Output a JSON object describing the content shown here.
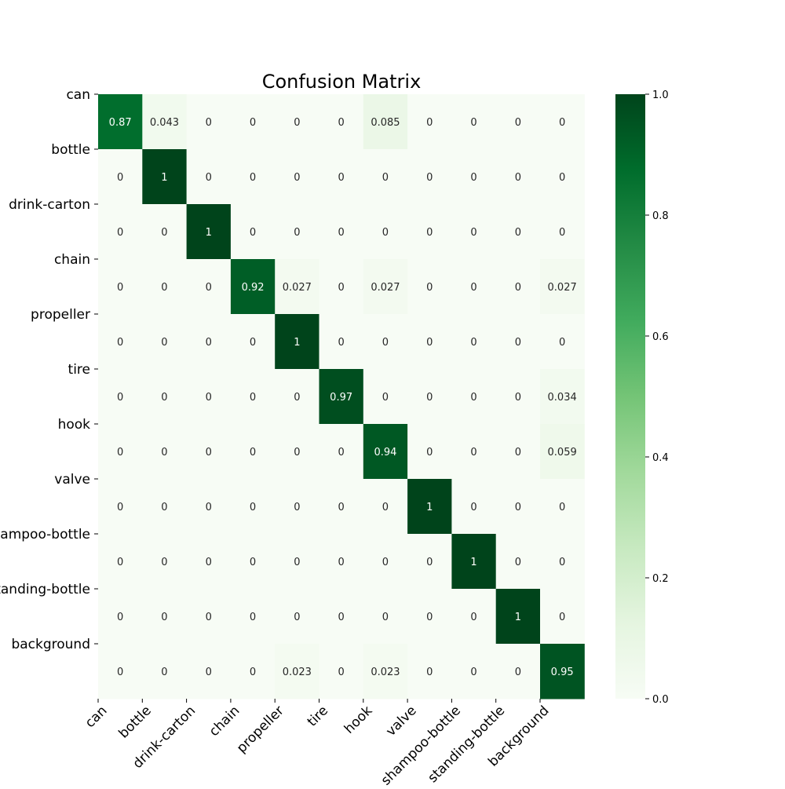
{
  "chart_data": {
    "type": "heatmap",
    "title": "Confusion Matrix",
    "xlabel": "",
    "ylabel": "",
    "row_labels": [
      "can",
      "bottle",
      "drink-carton",
      "chain",
      "propeller",
      "tire",
      "hook",
      "valve",
      "shampoo-bottle",
      "standing-bottle",
      "background"
    ],
    "col_labels": [
      "can",
      "bottle",
      "drink-carton",
      "chain",
      "propeller",
      "tire",
      "hook",
      "valve",
      "shampoo-bottle",
      "standing-bottle",
      "background"
    ],
    "values": [
      [
        0.87,
        0.043,
        0,
        0,
        0,
        0,
        0.085,
        0,
        0,
        0,
        0
      ],
      [
        0,
        1,
        0,
        0,
        0,
        0,
        0,
        0,
        0,
        0,
        0
      ],
      [
        0,
        0,
        1,
        0,
        0,
        0,
        0,
        0,
        0,
        0,
        0
      ],
      [
        0,
        0,
        0,
        0.92,
        0.027,
        0,
        0.027,
        0,
        0,
        0,
        0.027
      ],
      [
        0,
        0,
        0,
        0,
        1,
        0,
        0,
        0,
        0,
        0,
        0
      ],
      [
        0,
        0,
        0,
        0,
        0,
        0.97,
        0,
        0,
        0,
        0,
        0.034
      ],
      [
        0,
        0,
        0,
        0,
        0,
        0,
        0.94,
        0,
        0,
        0,
        0.059
      ],
      [
        0,
        0,
        0,
        0,
        0,
        0,
        0,
        1,
        0,
        0,
        0
      ],
      [
        0,
        0,
        0,
        0,
        0,
        0,
        0,
        0,
        1,
        0,
        0
      ],
      [
        0,
        0,
        0,
        0,
        0,
        0,
        0,
        0,
        0,
        1,
        0
      ],
      [
        0,
        0,
        0,
        0,
        0.023,
        0,
        0.023,
        0,
        0,
        0,
        0.95
      ]
    ],
    "value_range": [
      0,
      1
    ],
    "colormap": "Greens",
    "colorbar_ticks": [
      "0.0",
      "0.2",
      "0.4",
      "0.6",
      "0.8",
      "1.0"
    ],
    "colorbar_tick_values": [
      0,
      0.2,
      0.4,
      0.6,
      0.8,
      1.0
    ],
    "grid": false
  }
}
